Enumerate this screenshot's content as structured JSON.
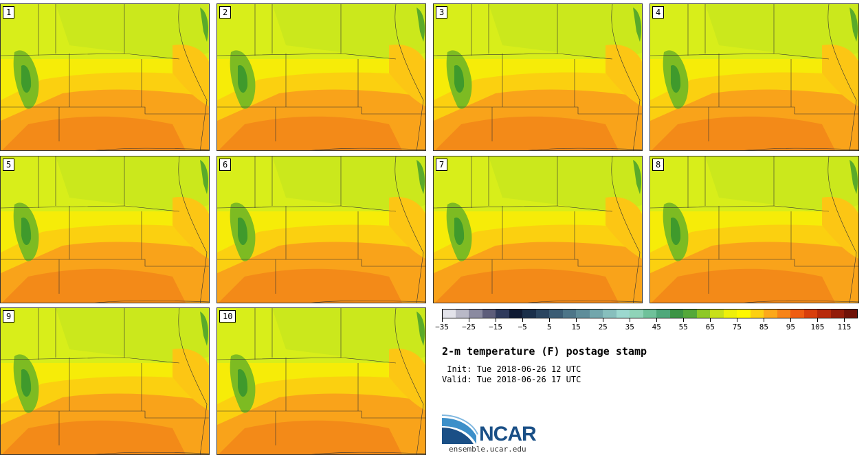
{
  "panels": [
    {
      "label": "1"
    },
    {
      "label": "2"
    },
    {
      "label": "3"
    },
    {
      "label": "4"
    },
    {
      "label": "5"
    },
    {
      "label": "6"
    },
    {
      "label": "7"
    },
    {
      "label": "8"
    },
    {
      "label": "9"
    },
    {
      "label": "10"
    }
  ],
  "colorbar": {
    "colors": [
      "#e3e3ea",
      "#b9b9c7",
      "#8a8aa0",
      "#5d5d7a",
      "#2f3a5c",
      "#0f1a33",
      "#1a2f4a",
      "#2a4560",
      "#3b5c74",
      "#4d7588",
      "#5f8d9a",
      "#72a6ac",
      "#87bfbd",
      "#9cd8cf",
      "#8fd3b8",
      "#6fc19a",
      "#4fa87b",
      "#3c9445",
      "#54a83a",
      "#8ec826",
      "#c8e01a",
      "#eef00a",
      "#fef800",
      "#fcd012",
      "#fca81a",
      "#f78418",
      "#ef5d12",
      "#d83f0d",
      "#b82a0b",
      "#931c0a",
      "#6f1208"
    ],
    "tick_labels": [
      "−35",
      "−25",
      "−15",
      "−5",
      "5",
      "15",
      "25",
      "35",
      "45",
      "55",
      "65",
      "75",
      "85",
      "95",
      "105",
      "115"
    ]
  },
  "title": "2-m temperature (F) postage stamp",
  "init_line": " Init: Tue 2018-06-26 12 UTC",
  "valid_line": "Valid: Tue 2018-06-26 17 UTC",
  "logo_text": "NCAR",
  "logo_url": "ensemble.ucar.edu"
}
